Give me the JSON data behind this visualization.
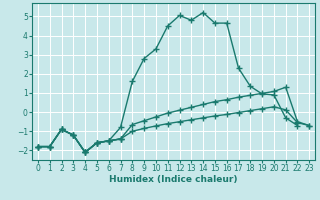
{
  "xlabel": "Humidex (Indice chaleur)",
  "bg_color": "#c8e8ea",
  "grid_color": "#ffffff",
  "line_color": "#1a7a6e",
  "ylim": [
    -2.5,
    5.7
  ],
  "xlim": [
    -0.5,
    23.5
  ],
  "yticks": [
    -2,
    -1,
    0,
    1,
    2,
    3,
    4,
    5
  ],
  "xticks": [
    0,
    1,
    2,
    3,
    4,
    5,
    6,
    7,
    8,
    9,
    10,
    11,
    12,
    13,
    14,
    15,
    16,
    17,
    18,
    19,
    20,
    21,
    22,
    23
  ],
  "curve_main_x": [
    0,
    1,
    2,
    3,
    4,
    5,
    6,
    7,
    8,
    9,
    10,
    11,
    12,
    13,
    14,
    15,
    16,
    17,
    18,
    19,
    20,
    21,
    22
  ],
  "curve_main_y": [
    -1.8,
    -1.8,
    -0.9,
    -1.2,
    -2.1,
    -1.6,
    -1.5,
    -0.8,
    1.6,
    2.8,
    3.3,
    4.5,
    5.05,
    4.8,
    5.2,
    4.65,
    4.65,
    2.3,
    1.35,
    0.95,
    0.9,
    -0.3,
    -0.7
  ],
  "curve_diag1_x": [
    0,
    1,
    2,
    3,
    4,
    5,
    6,
    7,
    8,
    9,
    10,
    11,
    12,
    13,
    14,
    15,
    16,
    17,
    18,
    19,
    20,
    21,
    22,
    23
  ],
  "curve_diag1_y": [
    -1.8,
    -1.8,
    -0.9,
    -1.2,
    -2.1,
    -1.6,
    -1.5,
    -1.4,
    -0.65,
    -0.45,
    -0.25,
    -0.05,
    0.1,
    0.25,
    0.4,
    0.55,
    0.65,
    0.78,
    0.88,
    0.98,
    1.08,
    1.3,
    -0.5,
    -0.7
  ],
  "curve_diag2_x": [
    0,
    1,
    2,
    3,
    4,
    5,
    6,
    7,
    8,
    9,
    10,
    11,
    12,
    13,
    14,
    15,
    16,
    17,
    18,
    19,
    20,
    21,
    22,
    23
  ],
  "curve_diag2_y": [
    -1.8,
    -1.8,
    -0.9,
    -1.2,
    -2.1,
    -1.6,
    -1.5,
    -1.4,
    -1.0,
    -0.85,
    -0.72,
    -0.6,
    -0.5,
    -0.4,
    -0.3,
    -0.2,
    -0.12,
    -0.02,
    0.08,
    0.18,
    0.28,
    0.12,
    -0.55,
    -0.7
  ],
  "curve_short_x": [
    0,
    1,
    2,
    3,
    4,
    5,
    6,
    7
  ],
  "curve_short_y": [
    -1.8,
    -1.8,
    -0.9,
    -1.2,
    -2.1,
    -1.6,
    -1.5,
    -1.4
  ]
}
